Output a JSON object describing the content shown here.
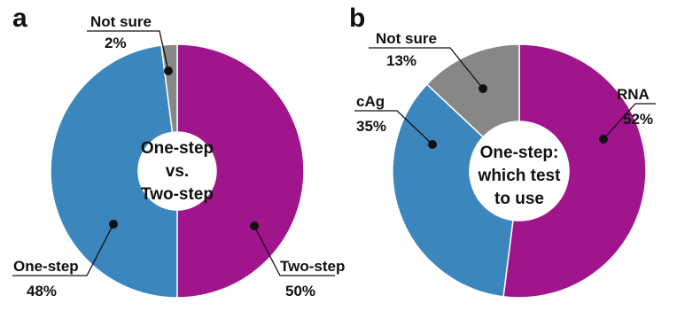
{
  "chart_data": [
    {
      "type": "pie",
      "panel_label": "a",
      "center_text": [
        "One-step",
        "vs.",
        "Two-step"
      ],
      "slices": [
        {
          "label": "Two-step",
          "value": 50,
          "value_text": "50%",
          "color": "#a0158c"
        },
        {
          "label": "One-step",
          "value": 48,
          "value_text": "48%",
          "color": "#3a86bd"
        },
        {
          "label": "Not sure",
          "value": 2,
          "value_text": "2%",
          "color": "#878787"
        }
      ]
    },
    {
      "type": "pie",
      "panel_label": "b",
      "center_text": [
        "One-step:",
        "which test",
        "to use"
      ],
      "slices": [
        {
          "label": "RNA",
          "value": 52,
          "value_text": "52%",
          "color": "#a0158c"
        },
        {
          "label": "cAg",
          "value": 35,
          "value_text": "35%",
          "color": "#3a86bd"
        },
        {
          "label": "Not sure",
          "value": 13,
          "value_text": "13%",
          "color": "#878787"
        }
      ]
    }
  ]
}
